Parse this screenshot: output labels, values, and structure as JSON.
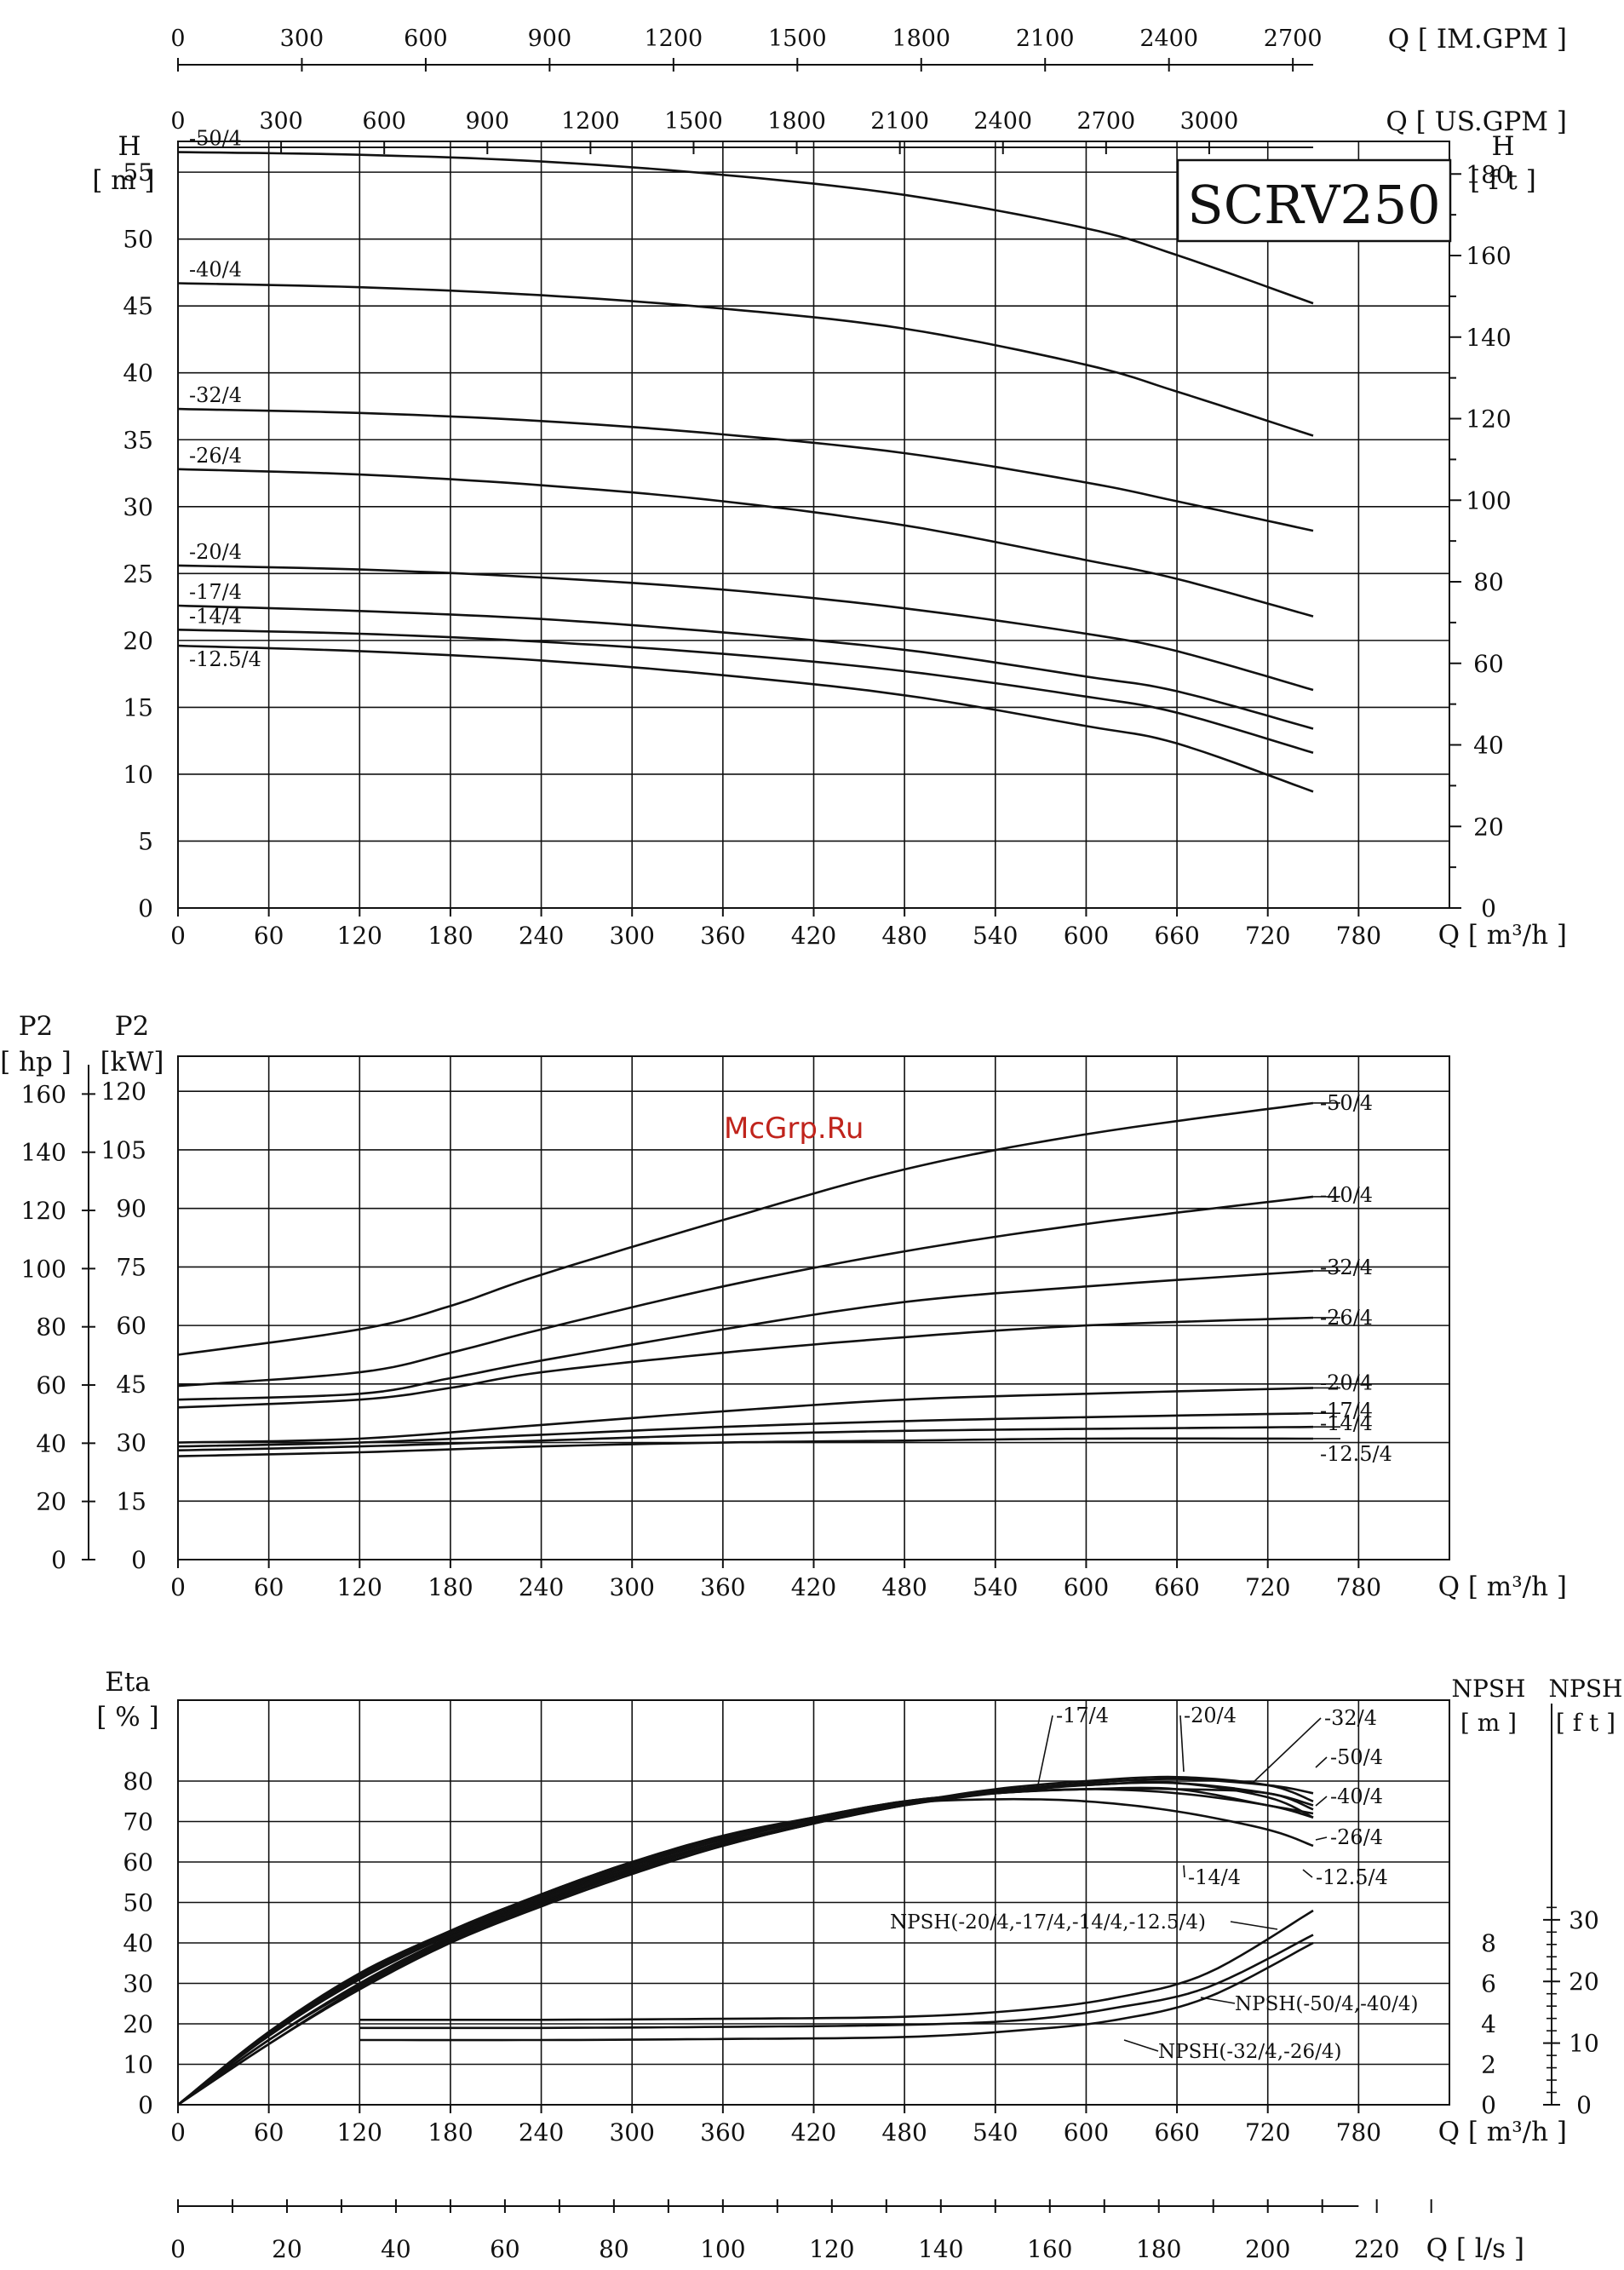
{
  "watermark": "McGrp.Ru",
  "chart_data": [
    {
      "id": "head",
      "type": "line",
      "title": "SCRV250",
      "xlabel": "Q [ m³/h ]",
      "ylabel_left": "H",
      "ylabel_left_unit": "[ m ]",
      "ylabel_right": "H",
      "ylabel_right_unit": "[ f t ]",
      "xlim": [
        0,
        840
      ],
      "ylim": [
        0,
        57.3
      ],
      "x_ticks": [
        0,
        60,
        120,
        180,
        240,
        300,
        360,
        420,
        480,
        540,
        600,
        660,
        720,
        780
      ],
      "y_ticks": [
        0,
        5,
        10,
        15,
        20,
        25,
        30,
        35,
        40,
        45,
        50,
        55
      ],
      "y_right_ticks": [
        0,
        20,
        40,
        60,
        80,
        100,
        120,
        140,
        160,
        180
      ],
      "top_axis_im_gpm": {
        "label": "Q [ IM.GPM ]",
        "ticks": [
          0,
          300,
          600,
          900,
          1200,
          1500,
          1800,
          2100,
          2400,
          2700
        ]
      },
      "top_axis_us_gpm": {
        "label": "Q [ US.GPM ]",
        "ticks": [
          0,
          300,
          600,
          900,
          1200,
          1500,
          1800,
          2100,
          2400,
          2700,
          3000
        ]
      },
      "series": [
        {
          "name": "-50/4",
          "x": [
            0,
            120,
            240,
            360,
            480,
            600,
            660,
            750
          ],
          "values": [
            56.5,
            56.3,
            55.8,
            54.8,
            53.3,
            50.8,
            48.8,
            45.2
          ]
        },
        {
          "name": "-40/4",
          "x": [
            0,
            120,
            240,
            360,
            480,
            600,
            660,
            750
          ],
          "values": [
            46.7,
            46.4,
            45.8,
            44.8,
            43.3,
            40.6,
            38.6,
            35.3
          ]
        },
        {
          "name": "-32/4",
          "x": [
            0,
            120,
            240,
            360,
            480,
            600,
            660,
            750
          ],
          "values": [
            37.3,
            37.0,
            36.4,
            35.4,
            34.0,
            31.8,
            30.4,
            28.2
          ]
        },
        {
          "name": "-26/4",
          "x": [
            0,
            120,
            240,
            360,
            480,
            600,
            660,
            750
          ],
          "values": [
            32.8,
            32.4,
            31.6,
            30.4,
            28.6,
            26.0,
            24.6,
            21.8
          ]
        },
        {
          "name": "-20/4",
          "x": [
            0,
            120,
            240,
            360,
            480,
            600,
            660,
            750
          ],
          "values": [
            25.6,
            25.3,
            24.7,
            23.8,
            22.4,
            20.5,
            19.2,
            16.3
          ]
        },
        {
          "name": "-17/4",
          "x": [
            0,
            120,
            240,
            360,
            480,
            600,
            660,
            750
          ],
          "values": [
            22.6,
            22.2,
            21.6,
            20.6,
            19.3,
            17.3,
            16.2,
            13.4
          ]
        },
        {
          "name": "-14/4",
          "x": [
            0,
            120,
            240,
            360,
            480,
            600,
            660,
            750
          ],
          "values": [
            20.8,
            20.5,
            19.9,
            19.0,
            17.7,
            15.8,
            14.6,
            11.6
          ]
        },
        {
          "name": "-12.5/4",
          "x": [
            0,
            120,
            240,
            360,
            480,
            600,
            660,
            750
          ],
          "values": [
            19.6,
            19.2,
            18.5,
            17.4,
            15.9,
            13.6,
            12.3,
            8.7
          ]
        }
      ]
    },
    {
      "id": "power",
      "type": "line",
      "xlabel": "Q [ m³/h ]",
      "ylabel_hp": "P2",
      "ylabel_hp_unit": "[ hp ]",
      "ylabel_kw": "P2",
      "ylabel_kw_unit": "[kW]",
      "xlim": [
        0,
        840
      ],
      "ylim": [
        0,
        129
      ],
      "x_ticks": [
        0,
        60,
        120,
        180,
        240,
        300,
        360,
        420,
        480,
        540,
        600,
        660,
        720,
        780
      ],
      "y_ticks_kw": [
        0,
        15,
        30,
        45,
        60,
        75,
        90,
        105,
        120
      ],
      "y_ticks_hp": [
        0,
        20,
        40,
        60,
        80,
        100,
        120,
        140,
        160
      ],
      "series": [
        {
          "name": "-50/4",
          "x": [
            0,
            120,
            180,
            240,
            360,
            480,
            600,
            750
          ],
          "values": [
            52.5,
            59,
            65,
            73,
            87,
            100,
            109,
            117
          ]
        },
        {
          "name": "-40/4",
          "x": [
            0,
            120,
            180,
            240,
            360,
            480,
            600,
            750
          ],
          "values": [
            44.5,
            48,
            53,
            59,
            70,
            79,
            86,
            93
          ]
        },
        {
          "name": "-32/4",
          "x": [
            0,
            120,
            180,
            240,
            360,
            480,
            600,
            750
          ],
          "values": [
            41,
            42.5,
            46.5,
            51,
            59,
            66,
            70,
            74
          ]
        },
        {
          "name": "-26/4",
          "x": [
            0,
            120,
            180,
            240,
            360,
            480,
            600,
            750
          ],
          "values": [
            39,
            41,
            44,
            48,
            53,
            57,
            60,
            62
          ]
        },
        {
          "name": "-20/4",
          "x": [
            0,
            120,
            240,
            360,
            480,
            600,
            750
          ],
          "values": [
            30,
            31,
            34.5,
            38,
            41,
            42.5,
            44
          ]
        },
        {
          "name": "-17/4",
          "x": [
            0,
            120,
            240,
            360,
            480,
            600,
            750
          ],
          "values": [
            29,
            30,
            32,
            34,
            35.5,
            36.5,
            37.5
          ]
        },
        {
          "name": "-14/4",
          "x": [
            0,
            120,
            240,
            360,
            480,
            600,
            750
          ],
          "values": [
            28,
            29,
            30.5,
            32,
            33,
            33.5,
            34
          ]
        },
        {
          "name": "-12.5/4",
          "x": [
            0,
            120,
            240,
            360,
            480,
            600,
            750
          ],
          "values": [
            26.5,
            27.5,
            29,
            30,
            30.5,
            31,
            31
          ]
        }
      ]
    },
    {
      "id": "efficiency_npsh",
      "type": "line",
      "xlabel": "Q [ m³/h ]",
      "ylabel_eta": "Eta",
      "ylabel_eta_unit": "[ % ]",
      "ylabel_npsh_m": "NPSH",
      "ylabel_npsh_m_unit": "[ m ]",
      "ylabel_npsh_ft": "NPSH",
      "ylabel_npsh_ft_unit": "[ f t ]",
      "xlim": [
        0,
        840
      ],
      "ylim": [
        0,
        100
      ],
      "x_ticks": [
        0,
        60,
        120,
        180,
        240,
        300,
        360,
        420,
        480,
        540,
        600,
        660,
        720,
        780
      ],
      "y_ticks_eta": [
        0,
        10,
        20,
        30,
        40,
        50,
        60,
        70,
        80
      ],
      "y_ticks_npsh_m": [
        0,
        2,
        4,
        6,
        8
      ],
      "y_ticks_npsh_ft": [
        0,
        10,
        20,
        30
      ],
      "bottom_axis_ls": {
        "label": "Q [ l/s ]",
        "ticks": [
          0,
          20,
          40,
          60,
          80,
          100,
          120,
          140,
          160,
          180,
          200,
          220
        ]
      },
      "eta_series": [
        {
          "name": "-17/4",
          "x": [
            0,
            60,
            120,
            180,
            240,
            300,
            360,
            420,
            480,
            540,
            600,
            660,
            720,
            750
          ],
          "values": [
            0,
            18,
            32,
            43,
            52,
            60,
            66,
            71,
            75,
            77,
            78,
            78,
            77,
            73
          ]
        },
        {
          "name": "-20/4",
          "x": [
            0,
            60,
            120,
            180,
            240,
            300,
            360,
            420,
            480,
            540,
            600,
            660,
            720,
            750
          ],
          "values": [
            0,
            17,
            31,
            42,
            51,
            59,
            65.5,
            70.5,
            74.5,
            77.5,
            79,
            79.5,
            76,
            71
          ]
        },
        {
          "name": "-32/4",
          "x": [
            0,
            60,
            120,
            180,
            240,
            300,
            360,
            420,
            480,
            540,
            600,
            660,
            720,
            750
          ],
          "values": [
            0,
            16,
            29.5,
            41,
            50,
            58,
            64.5,
            70,
            74.5,
            78,
            80,
            81,
            79,
            75
          ]
        },
        {
          "name": "-50/4",
          "x": [
            0,
            60,
            120,
            180,
            240,
            300,
            360,
            420,
            480,
            540,
            600,
            660,
            720,
            750
          ],
          "values": [
            0,
            15,
            28.5,
            40,
            49,
            57,
            64,
            69.5,
            74,
            77.5,
            79.5,
            80.5,
            79,
            77
          ]
        },
        {
          "name": "-40/4",
          "x": [
            0,
            60,
            120,
            180,
            240,
            300,
            360,
            420,
            480,
            540,
            600,
            660,
            720,
            750
          ],
          "values": [
            0,
            15,
            29,
            40.5,
            49.5,
            57.5,
            64,
            69.5,
            74,
            77,
            79,
            79.5,
            77,
            74
          ]
        },
        {
          "name": "-26/4",
          "x": [
            0,
            60,
            120,
            180,
            240,
            300,
            360,
            420,
            480,
            540,
            600,
            660,
            720,
            750
          ],
          "values": [
            0,
            16,
            30,
            41.5,
            50.5,
            58.5,
            65,
            70.5,
            74.5,
            77,
            78,
            78,
            74,
            72
          ]
        },
        {
          "name": "-14/4",
          "x": [
            0,
            60,
            120,
            180,
            240,
            300,
            360,
            420,
            480,
            540,
            600,
            660,
            720,
            750
          ],
          "values": [
            0,
            17.5,
            31.5,
            42.5,
            51.5,
            59.5,
            66,
            71,
            75,
            77,
            78,
            77,
            74,
            71
          ]
        },
        {
          "name": "-12.5/4",
          "x": [
            0,
            60,
            120,
            180,
            240,
            300,
            360,
            420,
            480,
            540,
            600,
            660,
            720,
            750
          ],
          "values": [
            0,
            18,
            32.5,
            43,
            52,
            60,
            66.5,
            71,
            74.5,
            75.5,
            75,
            72.5,
            68,
            64
          ]
        }
      ],
      "npsh_series": [
        {
          "name": "NPSH(-20/4,-17/4,-14/4,-12.5/4)",
          "x": [
            120,
            240,
            360,
            480,
            560,
            620,
            680,
            750
          ],
          "values_m": [
            4.2,
            4.2,
            4.25,
            4.35,
            4.7,
            5.3,
            6.5,
            9.6
          ]
        },
        {
          "name": "NPSH(-50/4,-40/4)",
          "x": [
            120,
            240,
            360,
            480,
            560,
            620,
            680,
            750
          ],
          "values_m": [
            3.8,
            3.8,
            3.85,
            3.95,
            4.2,
            4.8,
            5.8,
            8.4
          ]
        },
        {
          "name": "NPSH(-32/4,-26/4)",
          "x": [
            120,
            240,
            360,
            480,
            560,
            620,
            680,
            750
          ],
          "values_m": [
            3.2,
            3.2,
            3.25,
            3.35,
            3.7,
            4.2,
            5.3,
            8.0
          ]
        }
      ]
    }
  ]
}
